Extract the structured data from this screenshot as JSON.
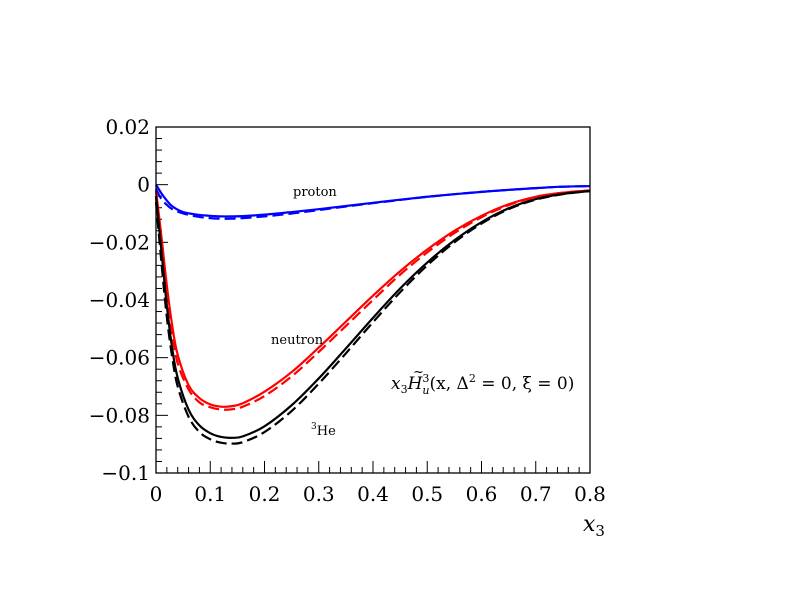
{
  "chart_data": {
    "type": "line",
    "xlabel": "x_3",
    "xlim": [
      0,
      0.8
    ],
    "ylim": [
      -0.1,
      0.02
    ],
    "x_ticks": [
      "0",
      "0.1",
      "0.2",
      "0.3",
      "0.4",
      "0.5",
      "0.6",
      "0.7",
      "0.8"
    ],
    "y_ticks": [
      "0.02",
      "0",
      "−0.02",
      "−0.04",
      "−0.06",
      "−0.08",
      "−0.1"
    ],
    "formula": {
      "lead": "x",
      "lead_sub": "3",
      "func": "H",
      "func_sup": "3",
      "func_sub": "u",
      "args": "(x, Δ",
      "args_sup": "2",
      "args_rest": " = 0, ξ = 0)"
    },
    "annotations": {
      "proton": "proton",
      "neutron": "neutron",
      "helium_sup": "3",
      "helium": "He"
    },
    "series": [
      {
        "label": "proton",
        "color": "#0000ff",
        "dashed": false,
        "x": [
          0.0,
          0.01,
          0.02,
          0.03,
          0.05,
          0.08,
          0.1,
          0.12,
          0.14,
          0.16,
          0.2,
          0.25,
          0.3,
          0.35,
          0.4,
          0.45,
          0.5,
          0.55,
          0.6,
          0.65,
          0.7,
          0.75,
          0.8
        ],
        "y": [
          0.0,
          -0.003,
          -0.0055,
          -0.0075,
          -0.0095,
          -0.0105,
          -0.0108,
          -0.011,
          -0.011,
          -0.0109,
          -0.0104,
          -0.0095,
          -0.0085,
          -0.0074,
          -0.0063,
          -0.0052,
          -0.0042,
          -0.0033,
          -0.0025,
          -0.0018,
          -0.0012,
          -0.0007,
          -0.0005
        ]
      },
      {
        "label": "proton-dashed",
        "color": "#0000ff",
        "dashed": true,
        "x": [
          0.0,
          0.01,
          0.02,
          0.03,
          0.05,
          0.08,
          0.1,
          0.12,
          0.14,
          0.16,
          0.2,
          0.25,
          0.3,
          0.35,
          0.4,
          0.45,
          0.5,
          0.55,
          0.6,
          0.65,
          0.7,
          0.75,
          0.8
        ],
        "y": [
          -0.0015,
          -0.005,
          -0.007,
          -0.0085,
          -0.01,
          -0.0112,
          -0.0116,
          -0.0118,
          -0.0118,
          -0.0116,
          -0.011,
          -0.01,
          -0.0088,
          -0.0076,
          -0.0064,
          -0.0053,
          -0.0042,
          -0.0033,
          -0.0025,
          -0.0018,
          -0.0012,
          -0.0007,
          -0.0005
        ]
      },
      {
        "label": "neutron",
        "color": "#ff0000",
        "dashed": false,
        "x": [
          0.0,
          0.01,
          0.02,
          0.03,
          0.04,
          0.06,
          0.08,
          0.1,
          0.12,
          0.14,
          0.16,
          0.2,
          0.25,
          0.3,
          0.35,
          0.4,
          0.45,
          0.5,
          0.55,
          0.6,
          0.65,
          0.7,
          0.75,
          0.8
        ],
        "y": [
          -0.002,
          -0.018,
          -0.035,
          -0.049,
          -0.059,
          -0.0695,
          -0.074,
          -0.0762,
          -0.077,
          -0.0768,
          -0.0758,
          -0.0718,
          -0.065,
          -0.0565,
          -0.0475,
          -0.0385,
          -0.03,
          -0.0225,
          -0.016,
          -0.0108,
          -0.0068,
          -0.0042,
          -0.0028,
          -0.002
        ]
      },
      {
        "label": "neutron-dashed",
        "color": "#ff0000",
        "dashed": true,
        "x": [
          0.0,
          0.01,
          0.02,
          0.03,
          0.04,
          0.06,
          0.08,
          0.1,
          0.12,
          0.14,
          0.16,
          0.2,
          0.25,
          0.3,
          0.35,
          0.4,
          0.45,
          0.5,
          0.55,
          0.6,
          0.65,
          0.7,
          0.75,
          0.8
        ],
        "y": [
          -0.004,
          -0.022,
          -0.039,
          -0.052,
          -0.062,
          -0.071,
          -0.0755,
          -0.0772,
          -0.078,
          -0.0779,
          -0.077,
          -0.0733,
          -0.0665,
          -0.058,
          -0.049,
          -0.04,
          -0.0312,
          -0.0235,
          -0.0168,
          -0.0113,
          -0.0071,
          -0.0043,
          -0.0028,
          -0.002
        ]
      },
      {
        "label": "helium3",
        "color": "#000000",
        "dashed": false,
        "x": [
          0.0,
          0.01,
          0.02,
          0.03,
          0.04,
          0.06,
          0.08,
          0.1,
          0.12,
          0.14,
          0.16,
          0.2,
          0.25,
          0.3,
          0.35,
          0.4,
          0.45,
          0.5,
          0.55,
          0.6,
          0.65,
          0.7,
          0.75,
          0.8
        ],
        "y": [
          -0.004,
          -0.023,
          -0.042,
          -0.057,
          -0.067,
          -0.078,
          -0.0835,
          -0.0862,
          -0.0875,
          -0.0878,
          -0.0873,
          -0.0838,
          -0.0765,
          -0.0672,
          -0.0568,
          -0.0462,
          -0.036,
          -0.027,
          -0.0193,
          -0.013,
          -0.0082,
          -0.005,
          -0.0032,
          -0.0022
        ]
      },
      {
        "label": "helium3-dashed",
        "color": "#000000",
        "dashed": true,
        "x": [
          0.0,
          0.01,
          0.02,
          0.03,
          0.04,
          0.06,
          0.08,
          0.1,
          0.12,
          0.14,
          0.16,
          0.2,
          0.25,
          0.3,
          0.35,
          0.4,
          0.45,
          0.5,
          0.55,
          0.6,
          0.65,
          0.7,
          0.75,
          0.8
        ],
        "y": [
          -0.006,
          -0.027,
          -0.046,
          -0.06,
          -0.07,
          -0.0805,
          -0.0858,
          -0.0883,
          -0.0895,
          -0.0898,
          -0.0893,
          -0.0858,
          -0.0785,
          -0.069,
          -0.0585,
          -0.0477,
          -0.0373,
          -0.028,
          -0.02,
          -0.0135,
          -0.0085,
          -0.0052,
          -0.0033,
          -0.0022
        ]
      }
    ]
  }
}
